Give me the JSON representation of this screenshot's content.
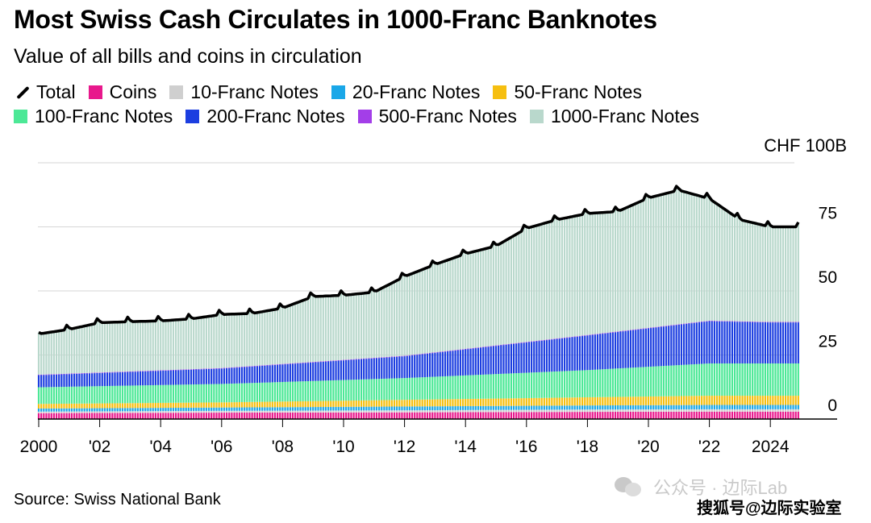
{
  "title": "Most Swiss Cash Circulates in 1000-Franc Banknotes",
  "subtitle": "Value of all bills and coins in circulation",
  "legend": [
    {
      "key": "total",
      "label": "Total",
      "kind": "line",
      "color": "#000000"
    },
    {
      "key": "coins",
      "label": "Coins",
      "kind": "swatch",
      "color": "#e8188c"
    },
    {
      "key": "f10",
      "label": "10-Franc Notes",
      "kind": "swatch",
      "color": "#cfcfcf"
    },
    {
      "key": "f20",
      "label": "20-Franc Notes",
      "kind": "swatch",
      "color": "#1aa7e8"
    },
    {
      "key": "f50",
      "label": "50-Franc Notes",
      "kind": "swatch",
      "color": "#f6bf10"
    },
    {
      "key": "f100",
      "label": "100-Franc Notes",
      "kind": "swatch",
      "color": "#4ce896"
    },
    {
      "key": "f200",
      "label": "200-Franc Notes",
      "kind": "swatch",
      "color": "#1c3ee0"
    },
    {
      "key": "f500",
      "label": "500-Franc Notes",
      "kind": "swatch",
      "color": "#a33ee8"
    },
    {
      "key": "f1000",
      "label": "1000-Franc Notes",
      "kind": "swatch",
      "color": "#b9d8cc"
    }
  ],
  "unit_label": "CHF 100B",
  "source": "Source: Swiss National Bank",
  "watermark": {
    "text": "公众号 · 边际Lab",
    "secondary": "搜狐号@边际实验室",
    "icon": "wechat-icon"
  },
  "chart_data": {
    "type": "bar",
    "stacked": true,
    "frequency": "monthly",
    "x_range": [
      "2000-01",
      "2024-12"
    ],
    "x_tick_labels": [
      "2000",
      "'02",
      "'04",
      "'06",
      "'08",
      "'10",
      "'12",
      "'14",
      "'16",
      "'18",
      "'20",
      "'22",
      "2024"
    ],
    "x_tick_years": [
      2000,
      2002,
      2004,
      2006,
      2008,
      2010,
      2012,
      2014,
      2016,
      2018,
      2020,
      2022,
      2024
    ],
    "y_ticks": [
      0,
      25,
      50,
      75,
      100
    ],
    "y_tick_labels": [
      "0",
      "25",
      "50",
      "75",
      "CHF 100B"
    ],
    "ylim": [
      0,
      100
    ],
    "grid": true,
    "legend_position": "top",
    "annual_total_anchors": {
      "years": [
        2000,
        2001,
        2002,
        2003,
        2004,
        2005,
        2006,
        2007,
        2008,
        2009,
        2010,
        2011,
        2012,
        2013,
        2014,
        2015,
        2016,
        2017,
        2018,
        2019,
        2020,
        2021,
        2022,
        2023,
        2024
      ],
      "values": [
        33.2,
        35.0,
        37.6,
        38.0,
        38.3,
        39.1,
        40.8,
        41.2,
        43.3,
        47.8,
        48.3,
        49.5,
        55.6,
        60.3,
        64.5,
        67.5,
        74.4,
        77.8,
        80.2,
        81.0,
        86.3,
        89.3,
        86.0,
        77.8,
        75.0
      ]
    },
    "annual_component_anchors": {
      "years": [
        2000,
        2006,
        2012,
        2018,
        2022,
        2024
      ],
      "coins": [
        2.3,
        2.5,
        2.6,
        2.8,
        2.9,
        2.9
      ],
      "f10": [
        0.6,
        0.7,
        0.8,
        0.9,
        0.9,
        0.9
      ],
      "f20": [
        1.2,
        1.3,
        1.5,
        1.6,
        1.7,
        1.7
      ],
      "f50": [
        1.8,
        2.0,
        2.6,
        3.2,
        3.6,
        3.6
      ],
      "f100": [
        6.5,
        7.2,
        8.5,
        10.6,
        12.6,
        12.6
      ],
      "f200": [
        4.7,
        6.0,
        8.5,
        13.5,
        16.5,
        16.0
      ],
      "f500": [
        0.2,
        0.2,
        0.2,
        0.2,
        0.2,
        0.2
      ]
    },
    "notes": "1000-Franc Notes = Total minus all other components; year-end (December) peaks in the total line"
  }
}
